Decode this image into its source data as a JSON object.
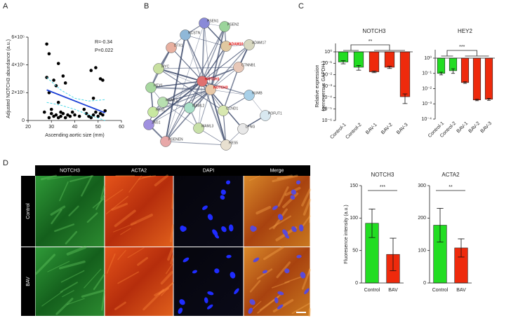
{
  "panel_labels": [
    "A",
    "B",
    "C",
    "D"
  ],
  "chart_data": [
    {
      "type": "scatter",
      "x_label": "Ascending aortic size (mm)",
      "y_label": "Adjusted NOTCH3 abundance (a.u.)",
      "annotations": [
        "R=-0.34",
        "P=0.022"
      ],
      "color": "#000000",
      "xlim": [
        20,
        60
      ],
      "xticks": [
        20,
        30,
        40,
        50,
        60
      ],
      "ylim": [
        0,
        600000
      ],
      "yticks": [
        0,
        {
          "value": 200000,
          "label": "2×10⁵"
        },
        {
          "value": 400000,
          "label": "4×10⁵"
        },
        {
          "value": 600000,
          "label": "6×10⁵"
        }
      ],
      "x": [
        28,
        29,
        33,
        28,
        35,
        31,
        36,
        32,
        29,
        33,
        47,
        49,
        51,
        52,
        48,
        30,
        31,
        32,
        33,
        34,
        35,
        36,
        37,
        38,
        39,
        40,
        30,
        29,
        34,
        45,
        46,
        47,
        48,
        49,
        50,
        51,
        52,
        53,
        27,
        44,
        42
      ],
      "values": [
        550000,
        480000,
        410000,
        310000,
        320000,
        290000,
        270000,
        250000,
        200000,
        130000,
        360000,
        380000,
        300000,
        290000,
        160000,
        50000,
        30000,
        40000,
        20000,
        30000,
        50000,
        20000,
        40000,
        30000,
        60000,
        40000,
        80000,
        20000,
        60000,
        50000,
        30000,
        20000,
        40000,
        60000,
        30000,
        50000,
        40000,
        70000,
        60000,
        80000,
        30000
      ],
      "lines": [
        {
          "color": "#1a3fd6",
          "style": "solid",
          "x": [
            28,
            53
          ],
          "values": [
            220000,
            55000
          ]
        },
        {
          "color": "#4dd9e8",
          "style": "dashed",
          "x": [
            28,
            34,
            40,
            46,
            53
          ],
          "values": [
            310000,
            220000,
            160000,
            140000,
            150000
          ]
        },
        {
          "color": "#4dd9e8",
          "style": "dashed",
          "x": [
            28,
            34,
            40,
            46,
            53
          ],
          "values": [
            130000,
            110000,
            80000,
            40000,
            0
          ]
        }
      ]
    },
    {
      "type": "bar",
      "title": "NOTCH3",
      "y_label": [
        "Relative expression",
        "(gene versus GAPDH )"
      ],
      "log_scale": true,
      "significance": "**",
      "categories": [
        "Control-1",
        "Control-2",
        "BAV-1",
        "BAV-2",
        "BAV-3"
      ],
      "colors": [
        "#22dd22",
        "#22dd22",
        "#ee2a0c",
        "#ee2a0c",
        "#ee2a0c"
      ],
      "values": [
        0.13,
        0.045,
        0.018,
        0.045,
        0.00012
      ],
      "errors": [
        0.04,
        0.02,
        0.003,
        0.01,
        9e-05
      ],
      "ylim": [
        1e-06,
        1
      ],
      "yticks": [
        {
          "value": 1,
          "label": "10⁰"
        },
        {
          "value": 0.1,
          "label": "10⁻¹"
        },
        {
          "value": 0.01,
          "label": "10⁻²"
        },
        {
          "value": 0.001,
          "label": "10⁻³"
        },
        {
          "value": 0.0001,
          "label": "10⁻⁴"
        },
        {
          "value": 1e-05,
          "label": "10⁻⁵"
        },
        {
          "value": 1e-06,
          "label": "10⁻⁶"
        }
      ]
    },
    {
      "type": "bar",
      "title": "HEY2",
      "log_scale": true,
      "significance": "***",
      "categories": [
        "Control-1",
        "Control-2",
        "BAV-1",
        "BAV-2",
        "BAV-3"
      ],
      "colors": [
        "#22dd22",
        "#22dd22",
        "#ee2a0c",
        "#ee2a0c",
        "#ee2a0c"
      ],
      "values": [
        0.1,
        0.15,
        0.025,
        0.0018,
        0.002
      ],
      "errors": [
        0.02,
        0.05,
        0.003,
        0.0002,
        0.0003
      ],
      "ylim": [
        0.0001,
        1
      ],
      "yticks": [
        {
          "value": 1,
          "label": "10⁰"
        },
        {
          "value": 0.1,
          "label": "10⁻¹"
        },
        {
          "value": 0.01,
          "label": "10⁻²"
        },
        {
          "value": 0.001,
          "label": "10⁻³"
        },
        {
          "value": 0.0001,
          "label": "10⁻⁴"
        }
      ]
    },
    {
      "type": "bar",
      "title": "NOTCH3",
      "y_label": "Fluoresence intensity (a.u.)",
      "log_scale": false,
      "significance": "***",
      "categories": [
        "Control",
        "BAV"
      ],
      "colors": [
        "#22dd22",
        "#ee2a0c"
      ],
      "values": [
        92,
        44
      ],
      "errors": [
        22,
        25
      ],
      "ylim": [
        0,
        150
      ],
      "yticks": [
        0,
        50,
        100,
        150
      ]
    },
    {
      "type": "bar",
      "title": "ACTA2",
      "log_scale": false,
      "significance": "**",
      "categories": [
        "Control",
        "BAV"
      ],
      "colors": [
        "#22dd22",
        "#ee2a0c"
      ],
      "values": [
        178,
        108
      ],
      "errors": [
        52,
        28
      ],
      "ylim": [
        0,
        300
      ],
      "yticks": [
        0,
        100,
        200,
        300
      ]
    }
  ],
  "network": {
    "nodes": [
      {
        "label": "PSEN1"
      },
      {
        "label": "PSEN2"
      },
      {
        "label": "NCSTN"
      },
      {
        "label": "DTX1"
      },
      {
        "label": "ADAM10",
        "highlight": true
      },
      {
        "label": "ADAM17"
      },
      {
        "label": "CTNNB1"
      },
      {
        "label": "MYC"
      },
      {
        "label": "HEY1"
      },
      {
        "label": "NOTCH1",
        "highlight": true
      },
      {
        "label": "NOTCH3",
        "highlight": true
      },
      {
        "label": "NUMB"
      },
      {
        "label": "POFUT1"
      },
      {
        "label": "MAML1"
      },
      {
        "label": "HES1"
      },
      {
        "label": "CCND1"
      },
      {
        "label": "MAML2"
      },
      {
        "label": "JAG1"
      },
      {
        "label": "MAML3"
      },
      {
        "label": "PSENEN"
      },
      {
        "label": "LFNG"
      },
      {
        "label": "HES5"
      }
    ]
  },
  "images": {
    "columns": [
      "NOTCH3",
      "ACTA2",
      "DAPI",
      "Merge"
    ],
    "rows": [
      "Control",
      "BAV"
    ]
  }
}
